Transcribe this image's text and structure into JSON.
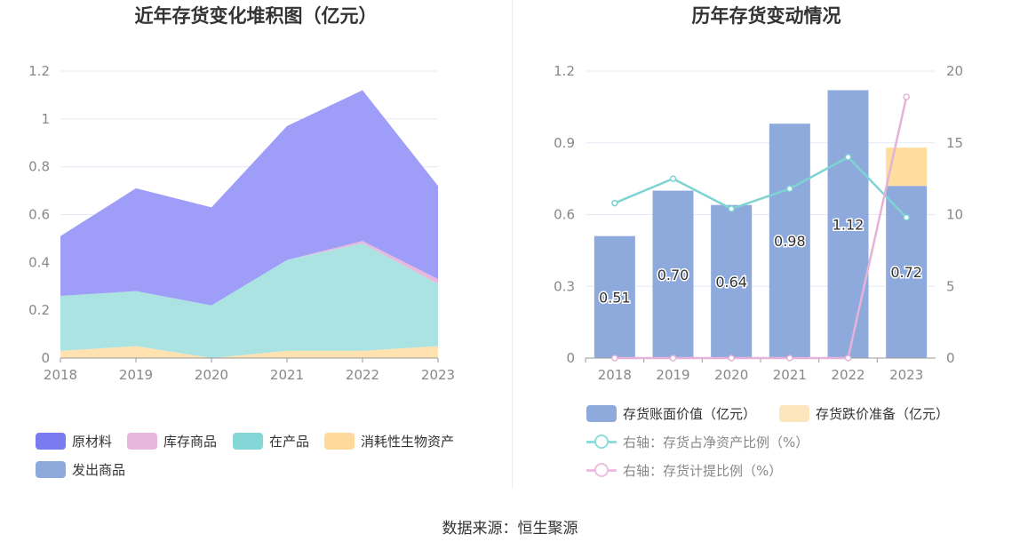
{
  "left_chart": {
    "title": "近年存货变化堆积图（亿元）",
    "legend": [
      {
        "name": "原材料",
        "color": "#7b7bf0"
      },
      {
        "name": "库存商品",
        "color": "#e8b7df"
      },
      {
        "name": "在产品",
        "color": "#85d6d6"
      },
      {
        "name": "消耗性生物资产",
        "color": "#ffd99b"
      },
      {
        "name": "发出商品",
        "color": "#8eaadc"
      }
    ]
  },
  "right_chart": {
    "title": "历年存货变动情况",
    "legend": [
      {
        "name": "存货账面价值（亿元）",
        "color": "#8eaadc",
        "kind": "bar"
      },
      {
        "name": "存货跌价准备（亿元）",
        "color": "#fde5bd",
        "kind": "bar"
      },
      {
        "name": "右轴：存货占净资产比例（%）",
        "color": "#8fdcdc",
        "kind": "line"
      },
      {
        "name": "右轴：存货计提比例（%）",
        "color": "#ecbfe0",
        "kind": "line"
      }
    ]
  },
  "source": "数据来源：恒生聚源",
  "chart_data": [
    {
      "type": "area",
      "stacked": true,
      "title": "近年存货变化堆积图（亿元）",
      "x": [
        "2018",
        "2019",
        "2020",
        "2021",
        "2022",
        "2023"
      ],
      "ylim": [
        0,
        1.2
      ],
      "y_ticks": [
        "0",
        "0.2",
        "0.4",
        "0.6",
        "0.8",
        "1",
        "1.2"
      ],
      "grid": true,
      "legend_position": "bottom",
      "series": [
        {
          "name": "消耗性生物资产",
          "color": "#ffe2b0",
          "values": [
            0.03,
            0.05,
            0.0,
            0.03,
            0.03,
            0.05
          ]
        },
        {
          "name": "在产品",
          "color": "#abe3e3",
          "values": [
            0.23,
            0.23,
            0.22,
            0.38,
            0.45,
            0.26
          ]
        },
        {
          "name": "库存商品",
          "color": "#e8b7df",
          "values": [
            0.0,
            0.0,
            0.0,
            0.0,
            0.01,
            0.02
          ]
        },
        {
          "name": "发出商品",
          "color": "#8eaadc",
          "values": [
            0.0,
            0.0,
            0.0,
            0.0,
            0.0,
            0.0
          ]
        },
        {
          "name": "原材料",
          "color": "#9e9ef8",
          "values": [
            0.25,
            0.43,
            0.41,
            0.56,
            0.63,
            0.39
          ]
        }
      ]
    },
    {
      "type": "bar",
      "title": "历年存货变动情况",
      "categories": [
        "2018",
        "2019",
        "2020",
        "2021",
        "2022",
        "2023"
      ],
      "ylim": [
        0,
        1.2
      ],
      "y_ticks": [
        "0",
        "0.3",
        "0.6",
        "0.9",
        "1.2"
      ],
      "y2lim": [
        0,
        20
      ],
      "y2_ticks": [
        "0",
        "5",
        "10",
        "15",
        "20"
      ],
      "grid": true,
      "legend_position": "bottom",
      "series": [
        {
          "name": "存货账面价值（亿元）",
          "type": "bar",
          "stack": "total",
          "color": "#8eaadc",
          "values": [
            0.51,
            0.7,
            0.64,
            0.98,
            1.12,
            0.72
          ],
          "labels": [
            "0.51",
            "0.70",
            "0.64",
            "0.98",
            "1.12",
            "0.72"
          ]
        },
        {
          "name": "存货跌价准备（亿元）",
          "type": "bar",
          "stack": "total",
          "color": "#ffdd9e",
          "values": [
            0,
            0,
            0,
            0,
            0,
            0.16
          ]
        },
        {
          "name": "右轴：存货占净资产比例（%）",
          "type": "line",
          "axis": "right",
          "color": "#7fd3d3",
          "values": [
            10.8,
            12.5,
            10.4,
            11.8,
            14.0,
            9.8
          ]
        },
        {
          "name": "右轴：存货计提比例（%）",
          "type": "line",
          "axis": "right",
          "color": "#e5b3d8",
          "values": [
            0,
            0,
            0,
            0,
            0,
            18.2
          ]
        }
      ]
    }
  ]
}
